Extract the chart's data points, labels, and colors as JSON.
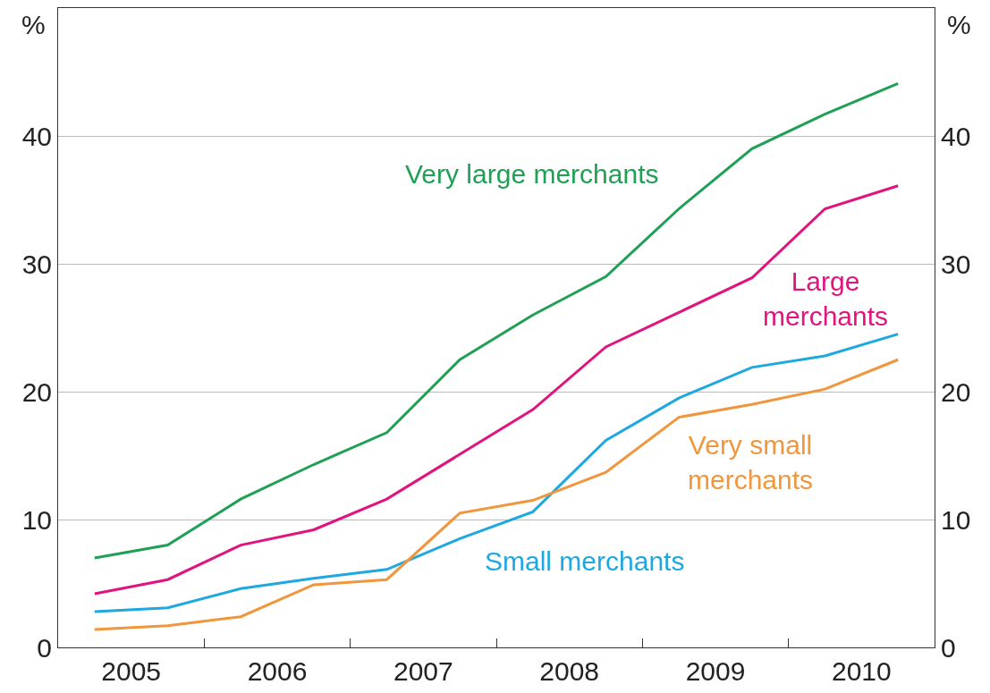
{
  "chart_data": {
    "type": "line",
    "ylabel": "%",
    "y2label": "%",
    "x": [
      2005.25,
      2005.75,
      2006.25,
      2006.75,
      2007.25,
      2007.75,
      2008.25,
      2008.75,
      2009.25,
      2009.75,
      2010.25,
      2010.75
    ],
    "series": [
      {
        "name": "Very large merchants",
        "color": "#1fa055",
        "values": [
          7.0,
          8.0,
          11.6,
          14.3,
          16.8,
          22.5,
          26.0,
          29.0,
          34.3,
          39.0,
          41.7,
          44.1
        ]
      },
      {
        "name": "Large merchants",
        "color": "#e0147f",
        "values": [
          4.2,
          5.3,
          8.0,
          9.2,
          11.6,
          15.1,
          18.6,
          23.5,
          26.2,
          28.9,
          34.3,
          36.1
        ]
      },
      {
        "name": "Small merchants",
        "color": "#1ea8e0",
        "values": [
          2.8,
          3.1,
          4.6,
          5.4,
          6.1,
          8.5,
          10.6,
          16.2,
          19.5,
          21.9,
          22.8,
          24.5
        ]
      },
      {
        "name": "Very small merchants",
        "color": "#f0963c",
        "values": [
          1.4,
          1.7,
          2.4,
          4.9,
          5.3,
          10.5,
          11.5,
          13.7,
          18.0,
          19.0,
          20.2,
          22.5
        ]
      }
    ],
    "xlim": [
      2005,
      2011
    ],
    "xticks": [
      {
        "value": 2005.5,
        "label": "2005"
      },
      {
        "value": 2006,
        "label": null
      },
      {
        "value": 2006.5,
        "label": "2006"
      },
      {
        "value": 2007,
        "label": null
      },
      {
        "value": 2007.5,
        "label": "2007"
      },
      {
        "value": 2008,
        "label": null
      },
      {
        "value": 2008.5,
        "label": "2008"
      },
      {
        "value": 2009,
        "label": null
      },
      {
        "value": 2009.5,
        "label": "2009"
      },
      {
        "value": 2010,
        "label": null
      },
      {
        "value": 2010.5,
        "label": "2010"
      }
    ],
    "ylim": [
      0,
      50
    ],
    "yticks": [
      0,
      10,
      20,
      30,
      40
    ],
    "y2lim": [
      0,
      50
    ],
    "y2ticks": [
      0,
      10,
      20,
      30,
      40
    ],
    "grid": "y",
    "legend": false,
    "marker": "none",
    "line_style": "solid"
  }
}
